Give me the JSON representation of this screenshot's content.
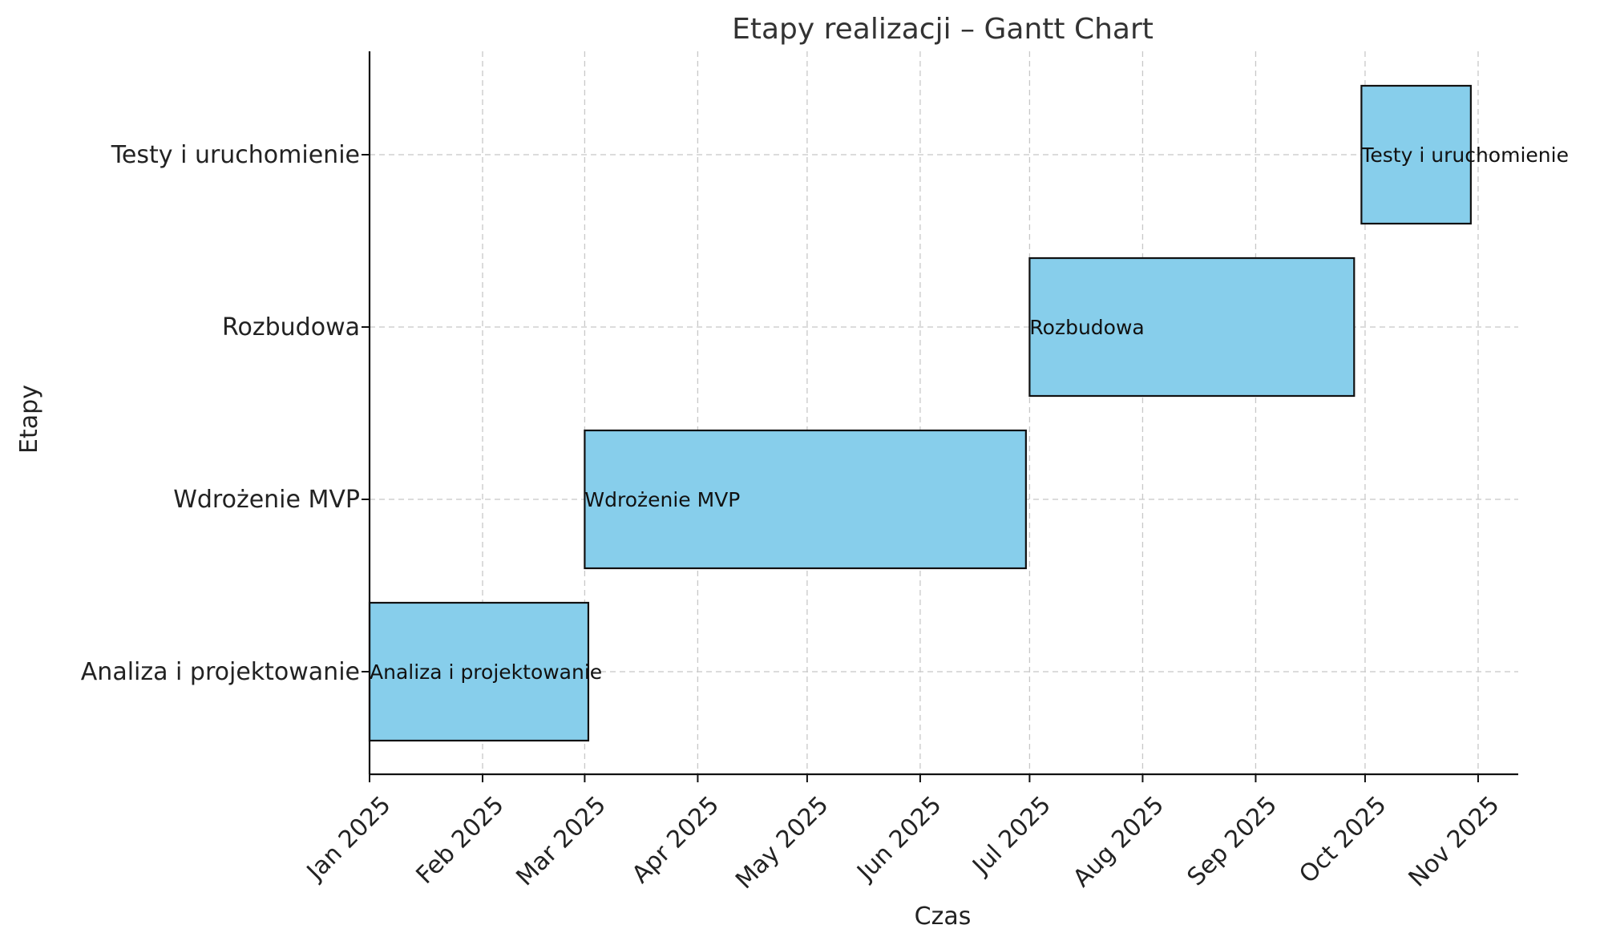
{
  "chart_data": {
    "type": "gantt",
    "title": "Etapy realizacji – Gantt Chart",
    "xlabel": "Czas",
    "ylabel": "Etapy",
    "grid": true,
    "bar_color": "#87CEEB",
    "edge_color": "#111111",
    "x_ticks": [
      "2025-01-01",
      "2025-02-01",
      "2025-03-01",
      "2025-04-01",
      "2025-05-01",
      "2025-06-01",
      "2025-07-01",
      "2025-08-01",
      "2025-09-01",
      "2025-10-01",
      "2025-11-01"
    ],
    "x_tick_labels": [
      "Jan 2025",
      "Feb 2025",
      "Mar 2025",
      "Apr 2025",
      "May 2025",
      "Jun 2025",
      "Jul 2025",
      "Aug 2025",
      "Sep 2025",
      "Oct 2025",
      "Nov 2025"
    ],
    "xlim": [
      "2025-01-01",
      "2025-11-12"
    ],
    "tasks": [
      {
        "name": "Analiza i projektowanie",
        "start": "2025-01-01",
        "end": "2025-03-02"
      },
      {
        "name": "Wdrożenie MVP",
        "start": "2025-03-01",
        "end": "2025-06-30"
      },
      {
        "name": "Rozbudowa",
        "start": "2025-07-01",
        "end": "2025-09-28"
      },
      {
        "name": "Testy i uruchomienie",
        "start": "2025-09-30",
        "end": "2025-10-30"
      }
    ]
  }
}
